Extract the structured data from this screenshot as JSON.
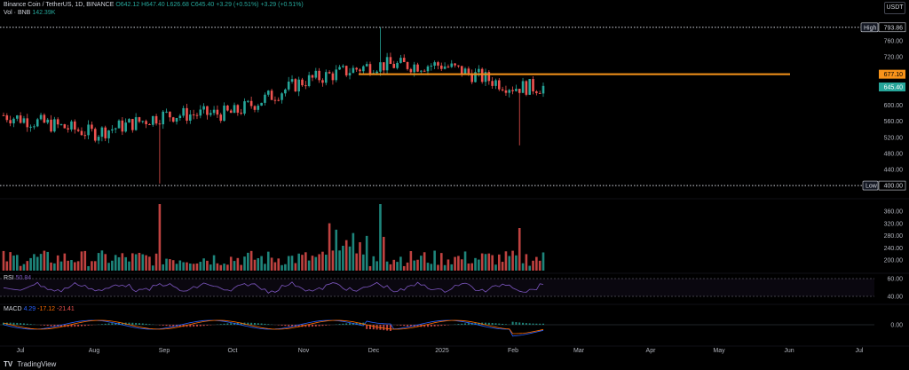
{
  "header": {
    "symbol": "Binance Coin / TetherUS, 1D, BINANCE",
    "ohlc_o": "O642.12",
    "ohlc_h": "H647.40",
    "ohlc_l": "L626.68",
    "ohlc_c": "C645.40",
    "change": "+3.29 (+0.51%)",
    "change2": "+3.29 (+0.51%)",
    "vol_label": "Vol · BNB",
    "vol_value": "142.39K",
    "rsi_label": "RSI",
    "rsi_value": "50.84",
    "macd_label": "MACD",
    "macd_v1": "4.29",
    "macd_v2": "-17.12",
    "macd_v3": "-21.41"
  },
  "currency": "USDT",
  "footer": {
    "logo": "TV",
    "brand": "TradingView"
  },
  "colors": {
    "up": "#26a69a",
    "down": "#ef5350",
    "hline": "#f7931a",
    "rsi": "#7e57c2",
    "macd": "#2962ff",
    "signal": "#ff6d00"
  },
  "chart_data": {
    "type": "candlestick",
    "symbol": "BNBUSDT",
    "interval": "1D",
    "x_tick_labels": [
      "Jul",
      "Aug",
      "Sep",
      "Oct",
      "Nov",
      "Dec",
      "2025",
      "Feb",
      "Mar",
      "Apr",
      "May",
      "Jun",
      "Jul"
    ],
    "price_axis": {
      "ticks": [
        760.0,
        720.0,
        680.0,
        640.0,
        600.0,
        560.0,
        520.0,
        480.0,
        440.0,
        400.0
      ],
      "ylim": [
        398,
        800
      ]
    },
    "high_line": {
      "label": "High",
      "value": "793.86"
    },
    "low_line": {
      "label": "Low",
      "value": "400.00"
    },
    "horizontal_level": {
      "value": "677.10"
    },
    "last_price": {
      "value": "645.40"
    },
    "monthly_closes": [
      {
        "month": "Jul",
        "close": 575
      },
      {
        "month": "Aug",
        "close": 530
      },
      {
        "month": "Sep",
        "close": 575
      },
      {
        "month": "Oct",
        "close": 580
      },
      {
        "month": "Nov",
        "close": 660
      },
      {
        "month": "Dec",
        "close": 700
      },
      {
        "month": "2025",
        "close": 700
      },
      {
        "month": "Feb",
        "close": 645
      }
    ],
    "volume_axis": {
      "ticks": [
        "360.00",
        "320.00",
        "280.00",
        "240.00",
        "200.00"
      ]
    },
    "rsi_axis": {
      "ticks": [
        "60.00",
        "40.00"
      ]
    },
    "macd_axis": {
      "ticks": [
        "0.00"
      ]
    },
    "grid": false
  }
}
